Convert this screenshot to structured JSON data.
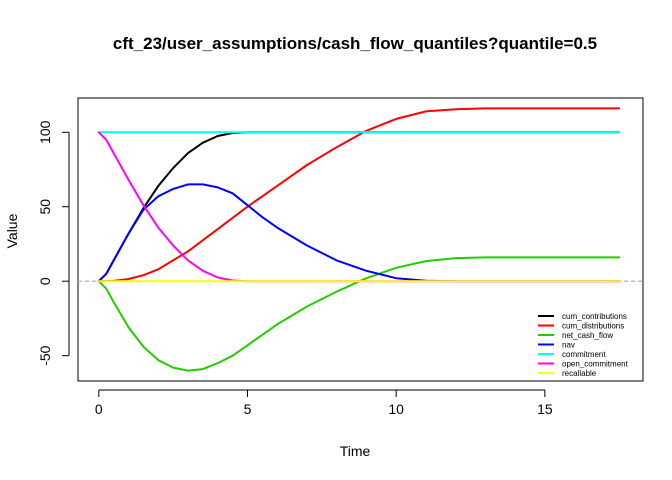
{
  "chart_data": {
    "type": "line",
    "title": "cft_23/user_assumptions/cash_flow_quantiles?quantile=0.5",
    "xlabel": "Time",
    "ylabel": "Value",
    "xlim": [
      -0.7,
      18.3
    ],
    "ylim": [
      -67,
      123
    ],
    "x_ticks": [
      0,
      5,
      10,
      15
    ],
    "x_tick_labels": [
      "0",
      "5",
      "10",
      "15"
    ],
    "y_ticks": [
      -50,
      0,
      50,
      100
    ],
    "y_tick_labels": [
      "-50",
      "0",
      "50",
      "100"
    ],
    "grid": false,
    "legend_position": "bottom-right",
    "reference_line": {
      "y": 0,
      "color": "#bbbbbb",
      "style": "dashed"
    },
    "series": [
      {
        "name": "cum_contributions",
        "color": "#000000",
        "x": [
          0,
          0.25,
          0.5,
          1,
          1.5,
          2,
          2.5,
          3,
          3.5,
          4,
          4.5,
          5,
          6,
          8,
          10,
          12,
          14,
          16,
          17.5
        ],
        "y": [
          0,
          5,
          14,
          32,
          49,
          64,
          76,
          86,
          93,
          97.5,
          99.5,
          100,
          100,
          100,
          100,
          100,
          100,
          100,
          100
        ]
      },
      {
        "name": "cum_distributions",
        "color": "#ff0000",
        "x": [
          0,
          0.5,
          1,
          1.5,
          2,
          3,
          4,
          5,
          6,
          7,
          8,
          9,
          10,
          11,
          12,
          13,
          15,
          17.5
        ],
        "y": [
          0,
          0.2,
          1.5,
          4,
          8,
          20,
          35,
          50,
          64,
          78,
          90,
          101,
          109,
          114,
          115.5,
          116,
          116,
          116
        ]
      },
      {
        "name": "net_cash_flow",
        "color": "#22cc00",
        "x": [
          0,
          0.25,
          0.5,
          1,
          1.5,
          2,
          2.5,
          3,
          3.5,
          4,
          4.5,
          5,
          5.5,
          6,
          7,
          8,
          9,
          10,
          11,
          12,
          13,
          15,
          17.5
        ],
        "y": [
          0,
          -5,
          -14,
          -31,
          -44,
          -53,
          -58,
          -60,
          -59,
          -55,
          -50,
          -43,
          -36,
          -29,
          -17,
          -7,
          2,
          9,
          13.5,
          15.5,
          16,
          16,
          16
        ]
      },
      {
        "name": "nav",
        "color": "#0000ff",
        "x": [
          0,
          0.25,
          0.5,
          1,
          1.5,
          2,
          2.5,
          3,
          3.5,
          4,
          4.5,
          5,
          5.5,
          6,
          7,
          8,
          9,
          10,
          11,
          12,
          15,
          17.5
        ],
        "y": [
          0,
          5,
          14,
          32,
          48,
          57,
          62,
          65,
          65,
          63,
          59,
          51,
          43,
          36,
          24,
          14,
          7,
          2,
          0.3,
          0,
          0,
          0
        ]
      },
      {
        "name": "commitment",
        "color": "#00ffff",
        "x": [
          0,
          17.5
        ],
        "y": [
          100,
          100
        ]
      },
      {
        "name": "open_commitment",
        "color": "#ff00ff",
        "x": [
          0,
          0.25,
          0.5,
          1,
          1.5,
          2,
          2.5,
          3,
          3.5,
          4,
          4.5,
          5,
          8,
          12,
          17.5
        ],
        "y": [
          100,
          95,
          86,
          68,
          51,
          36,
          24,
          14,
          7,
          2.5,
          0.5,
          0,
          0,
          0,
          0
        ]
      },
      {
        "name": "recallable",
        "color": "#ffff00",
        "x": [
          0,
          17.5
        ],
        "y": [
          0,
          0
        ]
      }
    ]
  }
}
